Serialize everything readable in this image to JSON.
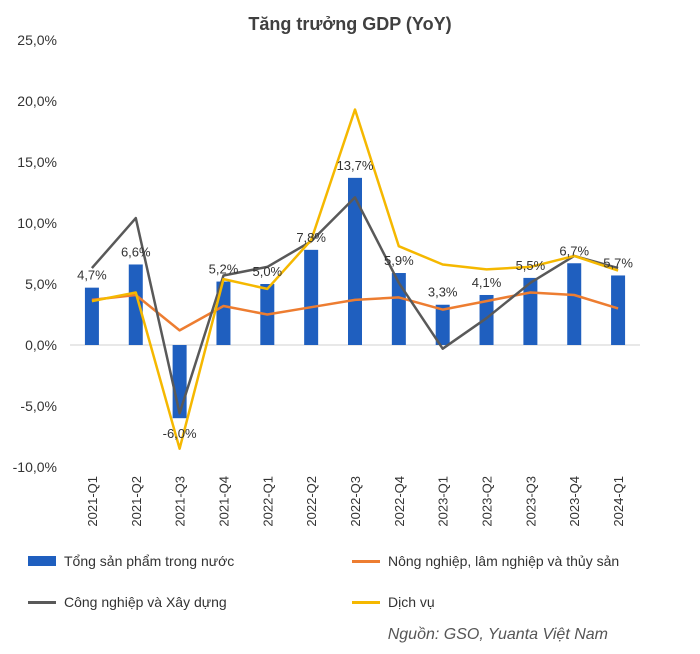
{
  "chart_data": {
    "type": "bar",
    "title": "Tăng trưởng GDP (YoY)",
    "categories": [
      "2021-Q1",
      "2021-Q2",
      "2021-Q3",
      "2021-Q4",
      "2022-Q1",
      "2022-Q2",
      "2022-Q3",
      "2022-Q4",
      "2023-Q1",
      "2023-Q2",
      "2023-Q3",
      "2023-Q4",
      "2024-Q1"
    ],
    "y_ticks": [
      "25,0%",
      "20,0%",
      "15,0%",
      "10,0%",
      "5,0%",
      "0,0%",
      "-5,0%",
      "-10,0%"
    ],
    "ylim": [
      -10,
      25
    ],
    "series": [
      {
        "name": "Tổng sản phẩm trong nước",
        "type": "bar",
        "color": "#1F5FBF",
        "values": [
          4.7,
          6.6,
          -6.0,
          5.2,
          5.0,
          7.8,
          13.7,
          5.9,
          3.3,
          4.1,
          5.5,
          6.7,
          5.7
        ],
        "labels": [
          "4,7%",
          "6,6%",
          "-6,0%",
          "5,2%",
          "5,0%",
          "7,8%",
          "13,7%",
          "5,9%",
          "3,3%",
          "4,1%",
          "5,5%",
          "6,7%",
          "5,7%"
        ]
      },
      {
        "name": "Nông nghiệp, lâm nghiệp và thủy sản",
        "type": "line",
        "color": "#ED7D31",
        "values": [
          3.7,
          4.1,
          1.2,
          3.2,
          2.5,
          3.1,
          3.7,
          3.9,
          2.9,
          3.6,
          4.3,
          4.1,
          3.0
        ]
      },
      {
        "name": "Công nghiệp và Xây dựng",
        "type": "line",
        "color": "#595959",
        "values": [
          6.3,
          10.4,
          -5.6,
          5.7,
          6.4,
          8.5,
          12.1,
          5.1,
          -0.3,
          2.2,
          5.1,
          7.3,
          6.3
        ]
      },
      {
        "name": "Dịch vụ",
        "type": "line",
        "color": "#F5B800",
        "values": [
          3.6,
          4.3,
          -8.5,
          5.4,
          4.6,
          8.6,
          19.3,
          8.1,
          6.6,
          6.2,
          6.4,
          7.3,
          6.1
        ]
      }
    ],
    "legend_position": "bottom",
    "grid": false
  },
  "source": "Nguồn: GSO, Yuanta Việt Nam"
}
